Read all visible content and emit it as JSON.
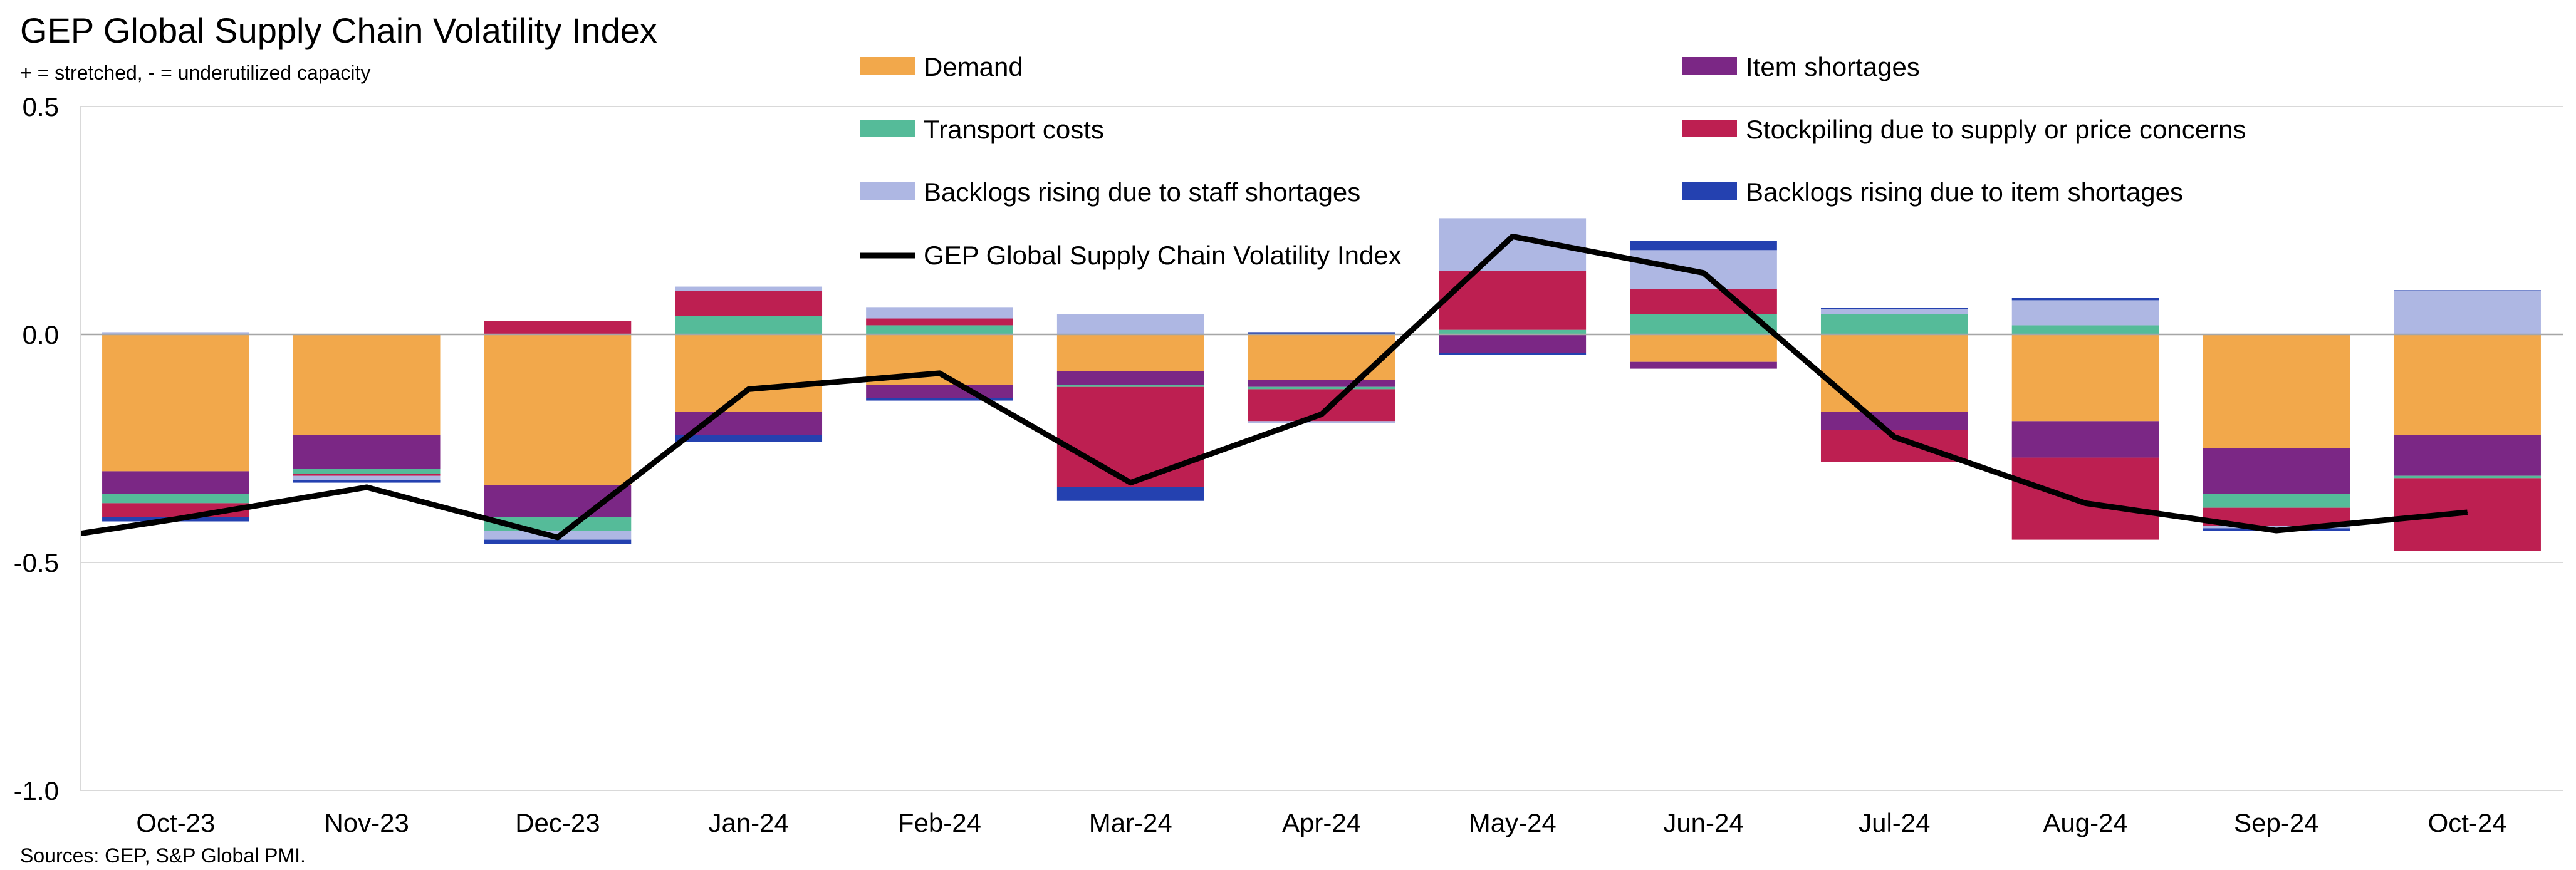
{
  "header": {
    "title": "GEP Global Supply Chain Volatility Index",
    "subtitle": "+ = stretched, - = underutilized capacity"
  },
  "footer": {
    "source": "Sources: GEP, S&P Global PMI."
  },
  "chart_data": {
    "type": "bar",
    "stacked": true,
    "title": "GEP Global Supply Chain Volatility Index",
    "subtitle": "+ = stretched, - = underutilized capacity",
    "xlabel": "",
    "ylabel": "",
    "ylim": [
      -1.0,
      0.5
    ],
    "yticks": [
      "0.5",
      "0.0",
      "-0.5",
      "-1.0"
    ],
    "ytick_values": [
      0.5,
      0.0,
      -0.5,
      -1.0
    ],
    "grid": true,
    "legend": "top, two columns",
    "categories": [
      "Oct-23",
      "Nov-23",
      "Dec-23",
      "Jan-24",
      "Feb-24",
      "Mar-24",
      "Apr-24",
      "May-24",
      "Jun-24",
      "Jul-24",
      "Aug-24",
      "Sep-24",
      "Oct-24"
    ],
    "series": [
      {
        "name": "Demand",
        "color": "#F2A84B",
        "values": [
          -0.3,
          -0.22,
          -0.33,
          -0.17,
          -0.11,
          -0.08,
          -0.1,
          0.0,
          -0.06,
          -0.17,
          -0.19,
          -0.25,
          -0.22
        ]
      },
      {
        "name": "Item shortages",
        "color": "#7B2785",
        "values": [
          -0.05,
          -0.075,
          -0.07,
          -0.05,
          -0.03,
          -0.03,
          -0.015,
          -0.04,
          -0.015,
          -0.04,
          -0.08,
          -0.1,
          -0.09
        ]
      },
      {
        "name": "Transport costs",
        "color": "#55BB99",
        "values": [
          -0.02,
          -0.01,
          -0.03,
          0.04,
          0.02,
          -0.005,
          -0.005,
          0.01,
          0.045,
          0.045,
          0.02,
          -0.03,
          -0.005
        ]
      },
      {
        "name": "Stockpiling due to supply or price concerns",
        "color": "#BD1F51",
        "values": [
          -0.03,
          -0.005,
          0.03,
          0.055,
          0.015,
          -0.22,
          -0.07,
          0.13,
          0.055,
          -0.07,
          -0.18,
          -0.04,
          -0.16
        ]
      },
      {
        "name": "Backlogs rising due to staff shortages",
        "color": "#AEB7E3",
        "values": [
          0.005,
          -0.01,
          -0.02,
          0.01,
          0.025,
          0.045,
          -0.005,
          0.115,
          0.085,
          0.01,
          0.055,
          -0.005,
          0.095
        ]
      },
      {
        "name": "Backlogs rising due to item shortages",
        "color": "#2441B0",
        "values": [
          -0.01,
          -0.005,
          -0.01,
          -0.015,
          -0.005,
          -0.03,
          0.005,
          -0.005,
          0.02,
          0.003,
          0.005,
          -0.005,
          0.002
        ]
      }
    ],
    "line": {
      "name": "GEP Global Supply Chain Volatility Index",
      "color": "#000000",
      "values": [
        -0.405,
        -0.335,
        -0.445,
        -0.12,
        -0.085,
        -0.325,
        -0.175,
        0.215,
        0.135,
        -0.225,
        -0.37,
        -0.43,
        -0.39
      ]
    }
  }
}
